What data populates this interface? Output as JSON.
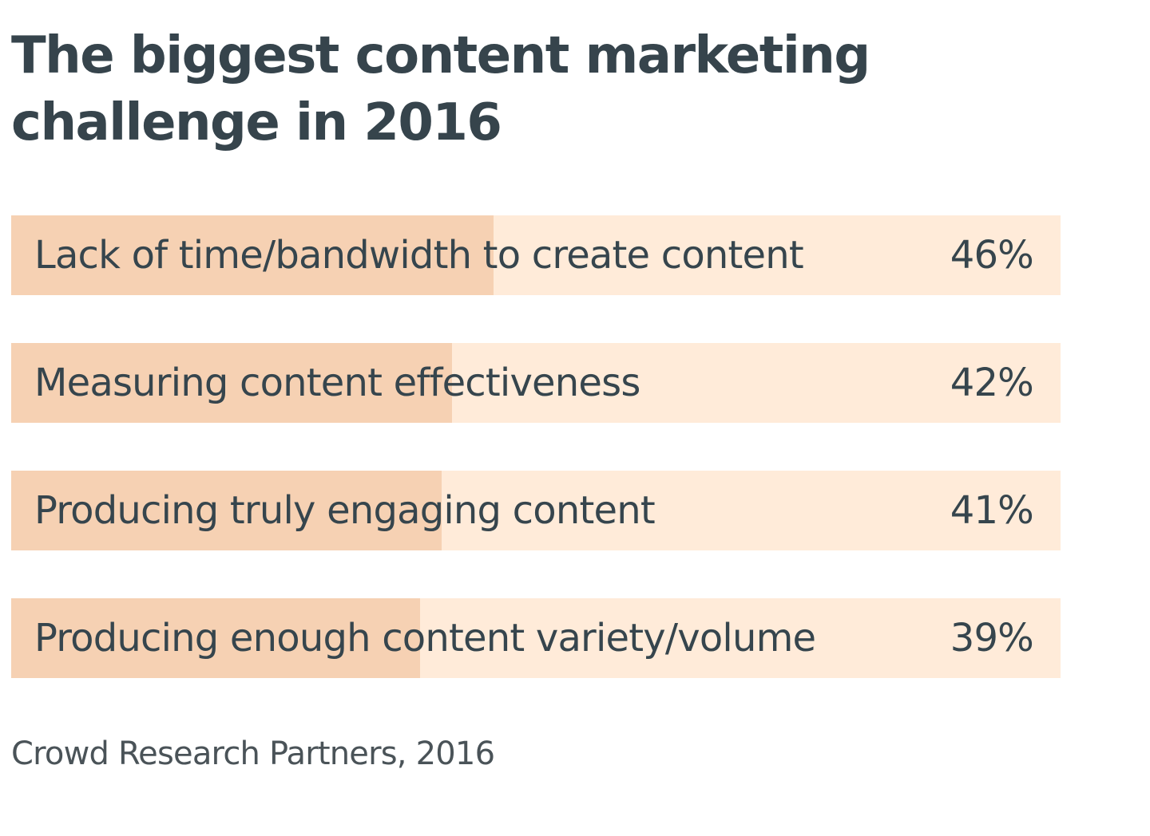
{
  "chart_data": {
    "type": "bar",
    "orientation": "horizontal",
    "title": "The biggest content marketing challenge in 2016",
    "categories": [
      "Lack of time/bandwidth to create content",
      "Measuring content effectiveness",
      "Producing truly engaging content",
      "Producing enough content variety/volume"
    ],
    "values": [
      46,
      42,
      41,
      39
    ],
    "value_labels": [
      "46%",
      "42%",
      "41%",
      "39%"
    ],
    "xlim": [
      0,
      100
    ],
    "unit": "%",
    "grid": false,
    "source": "Crowd Research Partners, 2016"
  },
  "colors": {
    "title": "#36444c",
    "text": "#36454d",
    "source": "#4a5358",
    "bar_track": "#ffebd9",
    "bar_fill": "#f6d1b3"
  }
}
